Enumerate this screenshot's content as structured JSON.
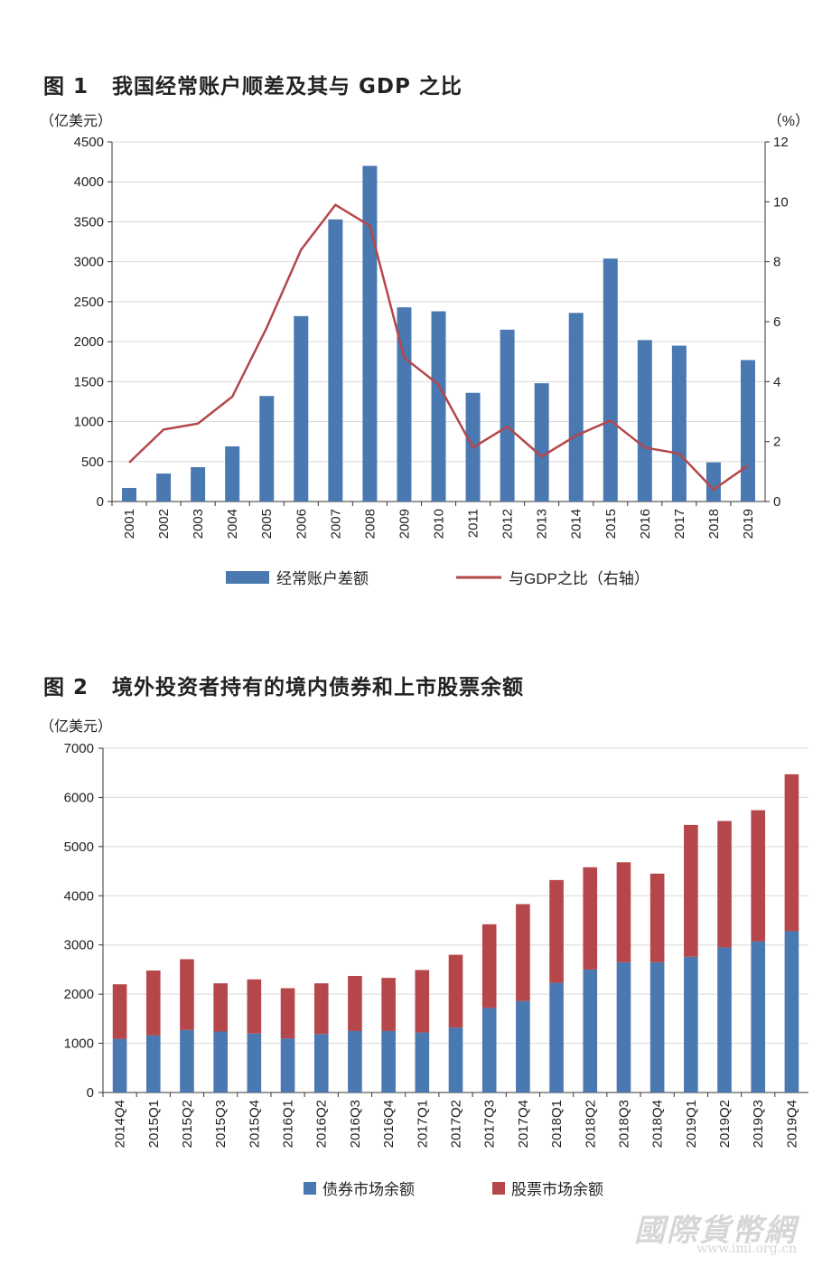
{
  "figure1": {
    "title_num": "图 1",
    "title_text": "我国经常账户顺差及其与 GDP 之比",
    "left_unit": "（亿美元）",
    "right_unit": "（%）",
    "legend_bar": "经常账户差额",
    "legend_line": "与GDP之比（右轴）",
    "colors": {
      "bar": "#4a78b0",
      "line": "#b5474a"
    }
  },
  "figure2": {
    "title_num": "图 2",
    "title_text": "境外投资者持有的境内债券和上市股票余额",
    "left_unit": "（亿美元）",
    "legend_bond": "债券市场余额",
    "legend_stock": "股票市场余额",
    "colors": {
      "bond": "#4a78b0",
      "stock": "#b5474a"
    }
  },
  "watermark": {
    "logo_text": "國際貨幣網",
    "url": "www.imi.org.cn"
  },
  "chart_data": [
    {
      "type": "bar",
      "categories": [
        "2001",
        "2002",
        "2003",
        "2004",
        "2005",
        "2006",
        "2007",
        "2008",
        "2009",
        "2010",
        "2011",
        "2012",
        "2013",
        "2014",
        "2015",
        "2016",
        "2017",
        "2018",
        "2019"
      ],
      "series": [
        {
          "name": "经常账户差额",
          "axis": "left",
          "values": [
            170,
            350,
            430,
            690,
            1320,
            2320,
            3530,
            4200,
            2430,
            2380,
            1360,
            2150,
            1480,
            2360,
            3040,
            2020,
            1950,
            490,
            1770
          ]
        },
        {
          "name": "与GDP之比（右轴）",
          "axis": "right",
          "type": "line",
          "values": [
            1.3,
            2.4,
            2.6,
            3.5,
            5.8,
            8.4,
            9.9,
            9.2,
            4.8,
            3.9,
            1.8,
            2.5,
            1.5,
            2.2,
            2.7,
            1.8,
            1.6,
            0.4,
            1.2
          ]
        }
      ],
      "ylim": [
        0,
        4500
      ],
      "yticks": [
        0,
        500,
        1000,
        1500,
        2000,
        2500,
        3000,
        3500,
        4000,
        4500
      ],
      "y2lim": [
        0,
        12
      ],
      "y2ticks": [
        0,
        2,
        4,
        6,
        8,
        10,
        12
      ],
      "ylabel": "（亿美元）",
      "y2label": "（%）",
      "grid": true,
      "legend": "bottom"
    },
    {
      "type": "bar",
      "stacked": true,
      "categories": [
        "2014Q4",
        "2015Q1",
        "2015Q2",
        "2015Q3",
        "2015Q4",
        "2016Q1",
        "2016Q2",
        "2016Q3",
        "2016Q4",
        "2017Q1",
        "2017Q2",
        "2017Q3",
        "2017Q4",
        "2018Q1",
        "2018Q2",
        "2018Q3",
        "2018Q4",
        "2019Q1",
        "2019Q2",
        "2019Q3",
        "2019Q4"
      ],
      "series": [
        {
          "name": "债券市场余额",
          "values": [
            1090,
            1160,
            1270,
            1240,
            1200,
            1100,
            1190,
            1250,
            1250,
            1220,
            1320,
            1720,
            1860,
            2230,
            2500,
            2650,
            2650,
            2760,
            2950,
            3070,
            3280
          ]
        },
        {
          "name": "股票市场余额",
          "values": [
            1110,
            1320,
            1440,
            980,
            1100,
            1020,
            1030,
            1120,
            1080,
            1270,
            1480,
            1700,
            1970,
            2090,
            2080,
            2030,
            1800,
            2680,
            2570,
            2670,
            3190
          ]
        }
      ],
      "ylim": [
        0,
        7000
      ],
      "yticks": [
        0,
        1000,
        2000,
        3000,
        4000,
        5000,
        6000,
        7000
      ],
      "ylabel": "（亿美元）",
      "grid": true,
      "legend": "bottom"
    }
  ]
}
